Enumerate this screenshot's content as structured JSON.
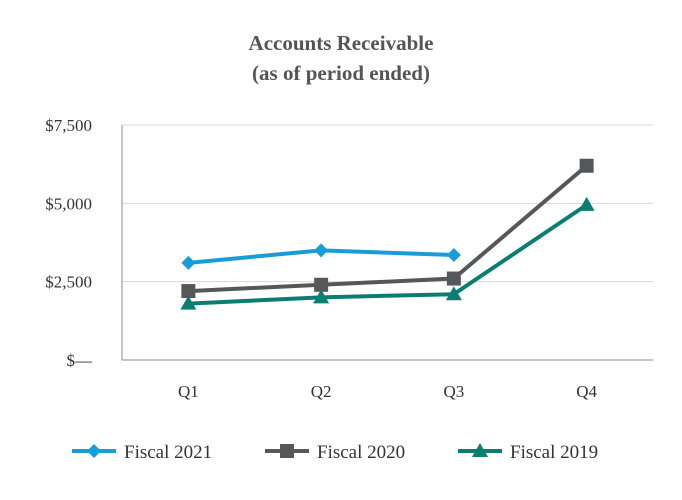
{
  "chart_data": {
    "type": "line",
    "title": "Accounts Receivable",
    "subtitle": "(as of period ended)",
    "xlabel": "",
    "ylabel": "",
    "categories": [
      "Q1",
      "Q2",
      "Q3",
      "Q4"
    ],
    "ylim": [
      0,
      7500
    ],
    "yticks": [
      {
        "value": 0,
        "label": "$—"
      },
      {
        "value": 2500,
        "label": "$2,500"
      },
      {
        "value": 5000,
        "label": "$5,000"
      },
      {
        "value": 7500,
        "label": "$7,500"
      }
    ],
    "grid": true,
    "legend_position": "bottom",
    "series": [
      {
        "name": "Fiscal 2021",
        "marker": "diamond",
        "color": "#1a9cd8",
        "values": [
          3100,
          3500,
          3350,
          null
        ]
      },
      {
        "name": "Fiscal 2020",
        "marker": "square",
        "color": "#555759",
        "values": [
          2200,
          2400,
          2600,
          6200
        ]
      },
      {
        "name": "Fiscal 2019",
        "marker": "triangle",
        "color": "#0b7d73",
        "values": [
          1800,
          2000,
          2100,
          4950
        ]
      }
    ]
  }
}
